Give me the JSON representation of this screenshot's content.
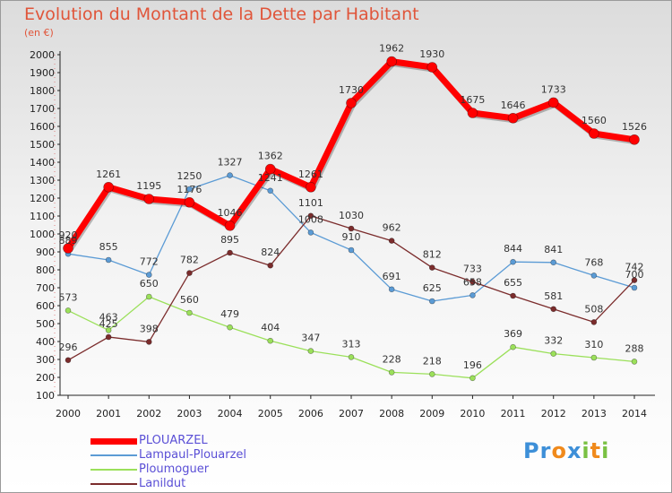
{
  "title": "Evolution du Montant de la Dette par Habitant",
  "unit": "(en €)",
  "logo": {
    "letters": [
      "P",
      "r",
      "o",
      "x",
      "i",
      "t",
      "i"
    ],
    "colors": [
      "#3d8fd8",
      "#3d8fd8",
      "#f08a1c",
      "#3d8fd8",
      "#7ac143",
      "#f08a1c",
      "#7ac143"
    ]
  },
  "chart_data": {
    "type": "line",
    "x": [
      "2000",
      "2001",
      "2002",
      "2003",
      "2004",
      "2005",
      "2006",
      "2007",
      "2008",
      "2009",
      "2010",
      "2011",
      "2012",
      "2013",
      "2014"
    ],
    "ylim": [
      100,
      2000
    ],
    "yticks": [
      100,
      200,
      300,
      400,
      500,
      600,
      700,
      800,
      900,
      1000,
      1100,
      1200,
      1300,
      1400,
      1500,
      1600,
      1700,
      1800,
      1900,
      2000
    ],
    "grid": false,
    "legend": "bottom-left",
    "series": [
      {
        "name": "PLOUARZEL",
        "color": "#ff0000",
        "values": [
          920,
          1261,
          1195,
          1176,
          1046,
          1362,
          1261,
          1730,
          1962,
          1930,
          1675,
          1646,
          1733,
          1560,
          1526
        ]
      },
      {
        "name": "Lampaul-Plouarzel",
        "color": "#5b9bd5",
        "values": [
          889,
          855,
          772,
          1250,
          1327,
          1241,
          1008,
          910,
          691,
          625,
          658,
          844,
          841,
          768,
          700
        ]
      },
      {
        "name": "Ploumoguer",
        "color": "#9be05a",
        "values": [
          573,
          463,
          650,
          560,
          479,
          404,
          347,
          313,
          228,
          218,
          196,
          369,
          332,
          310,
          288
        ]
      },
      {
        "name": "Lanildut",
        "color": "#7b2c2c",
        "values": [
          296,
          425,
          398,
          782,
          895,
          824,
          1101,
          1030,
          962,
          812,
          733,
          655,
          581,
          508,
          742
        ]
      }
    ]
  }
}
